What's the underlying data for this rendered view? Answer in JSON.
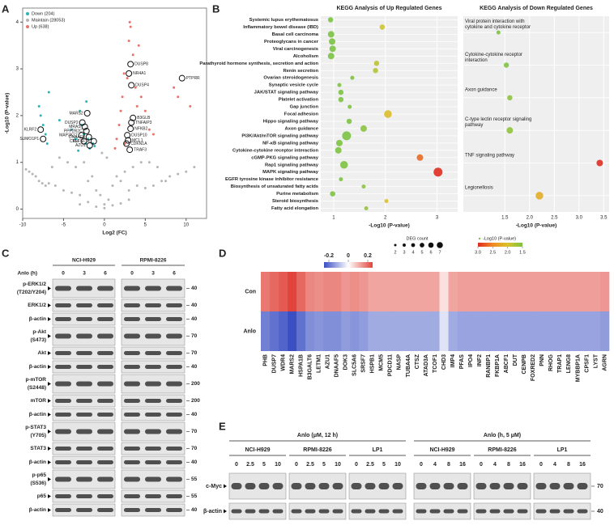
{
  "panels": [
    "A",
    "B",
    "C",
    "D",
    "E"
  ],
  "chart_data": [
    {
      "type": "scatter",
      "x_label": "Log2 (FC)",
      "y_label": "-Log10 (P-value)",
      "xlim": [
        -10,
        12.5
      ],
      "ylim": [
        -0.2,
        4.3
      ],
      "xticks": [
        -10,
        -5,
        0,
        5,
        10
      ],
      "yticks": [
        0,
        1,
        2,
        3,
        4
      ],
      "legend": "upper left",
      "series": [
        {
          "name": "Down (204)",
          "color": "#2bb5b8",
          "x": [
            -8,
            -7.8,
            -7.5,
            -7.2,
            -7,
            -6.8,
            -5.5,
            -4,
            -3.5,
            -3,
            -2.8,
            -2.5,
            -2.3,
            -2.2,
            -2,
            -1.8,
            -1.6,
            -1.4,
            -1.2,
            -3.2
          ],
          "y": [
            2.2,
            2.0,
            1.8,
            1.6,
            1.4,
            2.5,
            1.9,
            1.7,
            1.5,
            2.1,
            1.8,
            1.6,
            1.4,
            2.3,
            1.5,
            1.3,
            1.5,
            1.4,
            1.35,
            1.25
          ]
        },
        {
          "name": "Maintain (28053)",
          "color": "#b5b5b5",
          "x": [
            -9.6,
            -9.2,
            -8.8,
            -8.4,
            -8,
            -7.6,
            -7.2,
            -6.8,
            -6.4,
            -6,
            -5.5,
            -5,
            -4.5,
            -4,
            -3.5,
            -3,
            -2.5,
            -2,
            -1.5,
            -1,
            -0.5,
            0,
            0.5,
            1,
            1.5,
            2,
            2.5,
            3,
            3.5,
            4,
            4.5,
            5,
            5.5,
            6,
            6.5,
            7,
            7.5,
            8,
            9,
            10,
            11,
            -3,
            -2,
            -1,
            0,
            1,
            2,
            3,
            -0.3,
            0.3
          ],
          "y": [
            0.85,
            0.8,
            0.75,
            0.7,
            0.6,
            0.55,
            0.5,
            0.55,
            0.9,
            0.5,
            1.1,
            0.4,
            1.0,
            0.35,
            0.9,
            0.3,
            1.0,
            0.6,
            0.7,
            0.4,
            0.3,
            0.1,
            0.2,
            0.5,
            0.7,
            0.6,
            0.8,
            0.4,
            0.9,
            0.5,
            1.0,
            0.45,
            1.0,
            0.5,
            0.9,
            0.6,
            0.6,
            0.7,
            0.75,
            0.8,
            0.9,
            0.1,
            0.15,
            0.05,
            0.02,
            0.08,
            0.12,
            0.2,
            1.2,
            1.1
          ]
        },
        {
          "name": "Up (638)",
          "color": "#e8736b",
          "x": [
            1.3,
            1.5,
            1.8,
            2,
            2.2,
            2.5,
            2.8,
            3,
            3.2,
            3.5,
            3.8,
            4,
            4.5,
            5,
            5.5,
            6,
            2.4,
            3.1,
            4.2,
            8.5,
            9,
            10.5
          ],
          "y": [
            1.3,
            1.5,
            1.8,
            2.1,
            2.4,
            1.4,
            2.8,
            3.6,
            3.9,
            3.3,
            2.6,
            2.2,
            2.4,
            2.1,
            1.7,
            1.6,
            2.9,
            4.0,
            3.5,
            2.6,
            2.4,
            2.2
          ]
        }
      ],
      "genes": [
        {
          "label": "DUSP8",
          "x": 3.2,
          "y": 3.1
        },
        {
          "label": "NR4A1",
          "x": 3.0,
          "y": 2.9
        },
        {
          "label": "DUSP4",
          "x": 3.3,
          "y": 2.65
        },
        {
          "label": "PTPRR",
          "x": 9.5,
          "y": 2.8
        },
        {
          "label": "B3GLB",
          "x": 3.5,
          "y": 1.95
        },
        {
          "label": "TNFAIP3",
          "x": 3.3,
          "y": 1.85
        },
        {
          "label": "NFKB2",
          "x": 3.2,
          "y": 1.72
        },
        {
          "label": "DUSP10",
          "x": 2.8,
          "y": 1.58
        },
        {
          "label": "MCL1",
          "x": 2.9,
          "y": 1.47
        },
        {
          "label": "CDKN1A",
          "x": 2.7,
          "y": 1.4
        },
        {
          "label": "TRAF3",
          "x": 3.1,
          "y": 1.27
        },
        {
          "label": "MARS2",
          "x": -2.1,
          "y": 2.05
        },
        {
          "label": "DUSP2",
          "x": -2.7,
          "y": 1.85
        },
        {
          "label": "MRAS",
          "x": -2.4,
          "y": 1.76
        },
        {
          "label": "PPP2R2C",
          "x": -2.2,
          "y": 1.67
        },
        {
          "label": "MAP3K12",
          "x": -2.8,
          "y": 1.58
        },
        {
          "label": "DNAAF5",
          "x": -1.9,
          "y": 1.54
        },
        {
          "label": "CKLF",
          "x": -2.5,
          "y": 1.45
        },
        {
          "label": "TNFSF14",
          "x": -1.3,
          "y": 1.45
        },
        {
          "label": "AZU1",
          "x": -1.8,
          "y": 1.36
        },
        {
          "label": "KLRF2",
          "x": -7.8,
          "y": 1.7
        },
        {
          "label": "SUMO1P1",
          "x": -7.5,
          "y": 1.5
        }
      ]
    },
    {
      "type": "bubble",
      "title": "KEGG Analysis of Up Regulated Genes",
      "x_label": "-Log10 (P-value)",
      "xlim": [
        0.75,
        3.4
      ],
      "xticks": [
        1,
        2,
        3
      ],
      "categories": [
        "Systemic lupus erythematosus",
        "Inflammatory bowel disease (IBD)",
        "Basal cell carcinoma",
        "Proteoglycans in cancer",
        "Viral carcinogenesis",
        "Alcoholism",
        "Parathyroid hormone synthesis, secretion and action",
        "Renin secretion",
        "Ovarian steroidogenesis",
        "Synaptic vesicle cycle",
        "JAK/STAT signaling pathway",
        "Platelet activation",
        "Gap junction",
        "Focal adhesion",
        "Hippo signaling pathway",
        "Axon guidance",
        "PI3K/Akt/mTOR signaling pathway",
        "NF-κB signaling pathway",
        "Cytokine-cytokine receptor interaction",
        "cGMP-PKG signaling pathway",
        "Rap1 signaling pathway",
        "MAPK signaling pathway",
        "EGFR tyrosine kinase inhibitor resistance",
        "Biosynthesis of unsaturated fatty acids",
        "Purine metabolism",
        "Steroid biosynthesis",
        "Fatty acid elongation"
      ],
      "values": [
        0.94,
        1.94,
        0.95,
        0.97,
        0.98,
        0.95,
        1.83,
        1.81,
        1.36,
        1.11,
        1.14,
        1.14,
        1.31,
        2.05,
        1.3,
        1.58,
        1.25,
        1.11,
        1.09,
        2.67,
        1.2,
        3.02,
        1.14,
        1.58,
        0.98,
        2.02,
        1.63
      ],
      "sizes": [
        3,
        3,
        4,
        4,
        4,
        4,
        3,
        3,
        2,
        2,
        3,
        3,
        2,
        5,
        3,
        4,
        6,
        4,
        4,
        4,
        5,
        6,
        2,
        2,
        3,
        2,
        2
      ],
      "size_legend": {
        "title": "DEG count",
        "values": [
          2,
          3,
          4,
          5,
          6,
          7
        ]
      },
      "color_scale": {
        "title": "-Log10 (P-value)",
        "ticks": [
          {
            "value": 3,
            "label": "3.0"
          },
          {
            "value": 2.5,
            "label": "2.5"
          },
          {
            "value": 2,
            "label": "2.0"
          },
          {
            "value": 1.5,
            "label": "1.5"
          }
        ],
        "colors": [
          "#e02b20",
          "#f08a24",
          "#d9c32a",
          "#7cc243"
        ]
      }
    },
    {
      "type": "bubble",
      "title": "KEGG Analysis of Down Regulated Genes",
      "x_label": "-Log10 (P-value)",
      "xlim": [
        0.66,
        3.61
      ],
      "xticks": [
        1.5,
        {
          "value": 2,
          "label": "2.0"
        },
        2.5,
        {
          "value": 3,
          "label": "3.0"
        },
        3.5
      ],
      "categories": [
        "Viral protein interaction with cytokine and cytokine receptor",
        "Cytokine-cytokine receptor interaction",
        "Axon guidance",
        "C-type lectin receptor signaling pathway",
        "TNF signaling pathway",
        "Legionellosis"
      ],
      "values": [
        1.37,
        1.53,
        1.6,
        1.6,
        3.42,
        2.2
      ],
      "sizes": [
        2,
        3,
        3,
        4,
        4,
        5
      ]
    },
    {
      "type": "heatmap",
      "rows": [
        "Con",
        "Anlo"
      ],
      "categories": [
        "PHB",
        "DUSP7",
        "WDR4",
        "MARS2",
        "HSPA1B",
        "B3GALT6",
        "LETM1",
        "AZU1",
        "DNAAF5",
        "DOK3",
        "SLC5A6",
        "SRSF7",
        "HSPB1",
        "MCM5",
        "PDCD11",
        "NASP",
        "TUBA4A",
        "CTSZ",
        "ATAD3A",
        "TCOF1",
        "CHD3",
        "IMP4",
        "PFAS",
        "IPO4",
        "INF2",
        "RANBP1",
        "FKBP1A",
        "ABCF1",
        "DUT",
        "CENPB",
        "FOXRED2",
        "PNN",
        "RHOG",
        "TRAP1",
        "LENG8",
        "MYBBP1A",
        "CPSF1",
        "LYST",
        "AGRN"
      ],
      "values": [
        [
          0.18,
          0.2,
          0.22,
          0.26,
          0.2,
          0.16,
          0.15,
          0.16,
          0.16,
          0.14,
          0.15,
          0.14,
          0.12,
          0.12,
          0.12,
          0.12,
          0.12,
          0.12,
          0.12,
          0.12,
          0.04,
          0.12,
          0.13,
          0.13,
          0.13,
          0.13,
          0.13,
          0.13,
          0.13,
          0.13,
          0.13,
          0.13,
          0.13,
          0.13,
          0.13,
          0.13,
          0.13,
          0.13,
          0.14
        ],
        [
          -0.18,
          -0.2,
          -0.22,
          -0.26,
          -0.2,
          -0.16,
          -0.15,
          -0.16,
          -0.16,
          -0.14,
          -0.15,
          -0.14,
          -0.12,
          -0.12,
          -0.12,
          -0.12,
          -0.12,
          -0.12,
          -0.12,
          -0.12,
          -0.04,
          -0.12,
          -0.13,
          -0.13,
          -0.13,
          -0.13,
          -0.13,
          -0.13,
          -0.13,
          -0.13,
          -0.13,
          -0.13,
          -0.13,
          -0.13,
          -0.13,
          -0.13,
          -0.13,
          -0.13,
          -0.14
        ]
      ],
      "clim": [
        -0.25,
        0.25
      ],
      "colorbar_ticks": [
        -0.2,
        0,
        0.2
      ],
      "colors": [
        "#3a4fc2",
        "#ffffff",
        "#e0443a"
      ]
    }
  ],
  "blot_c": {
    "cell_lines": [
      "NCI-H929",
      "RPMI-8226"
    ],
    "treatment": "Anlo (h)",
    "lanes": [
      0,
      3,
      6
    ],
    "rows": [
      {
        "label": "p-ERK1/2",
        "site": "(T202/Y204)",
        "mw": 40
      },
      {
        "label": "ERK1/2",
        "mw": 40
      },
      {
        "label": "β-actin",
        "mw": 40
      },
      {
        "label": "p-Akt",
        "site": "(S473)",
        "mw": 70
      },
      {
        "label": "Akt",
        "mw": 70
      },
      {
        "label": "β-actin",
        "mw": 40
      },
      {
        "label": "p-mTOR",
        "site": "(S2448)",
        "mw": 200
      },
      {
        "label": "mTOR",
        "mw": 200
      },
      {
        "label": "β-actin",
        "mw": 40
      },
      {
        "label": "p-STAT3",
        "site": "(Y705)",
        "mw": 70
      },
      {
        "label": "STAT3",
        "mw": 70
      },
      {
        "label": "β-actin",
        "mw": 40
      },
      {
        "label": "p-p65",
        "site": "(S536)",
        "mw": 55
      },
      {
        "label": "p65",
        "mw": 55
      },
      {
        "label": "β-actin",
        "mw": 40
      }
    ]
  },
  "blot_e": {
    "groups": [
      {
        "treatment": "Anlo (μM, 12 h)",
        "lanes": [
          0,
          2.5,
          5,
          10
        ]
      },
      {
        "treatment": "Anlo (h, 5 μM)",
        "lanes": [
          0,
          4,
          8,
          16
        ]
      }
    ],
    "cell_lines": [
      "NCI-H929",
      "RPMI-8226",
      "LP1"
    ],
    "rows": [
      {
        "label": "c-Myc",
        "mw": 70
      },
      {
        "label": "β-actin",
        "mw": 40
      }
    ]
  }
}
